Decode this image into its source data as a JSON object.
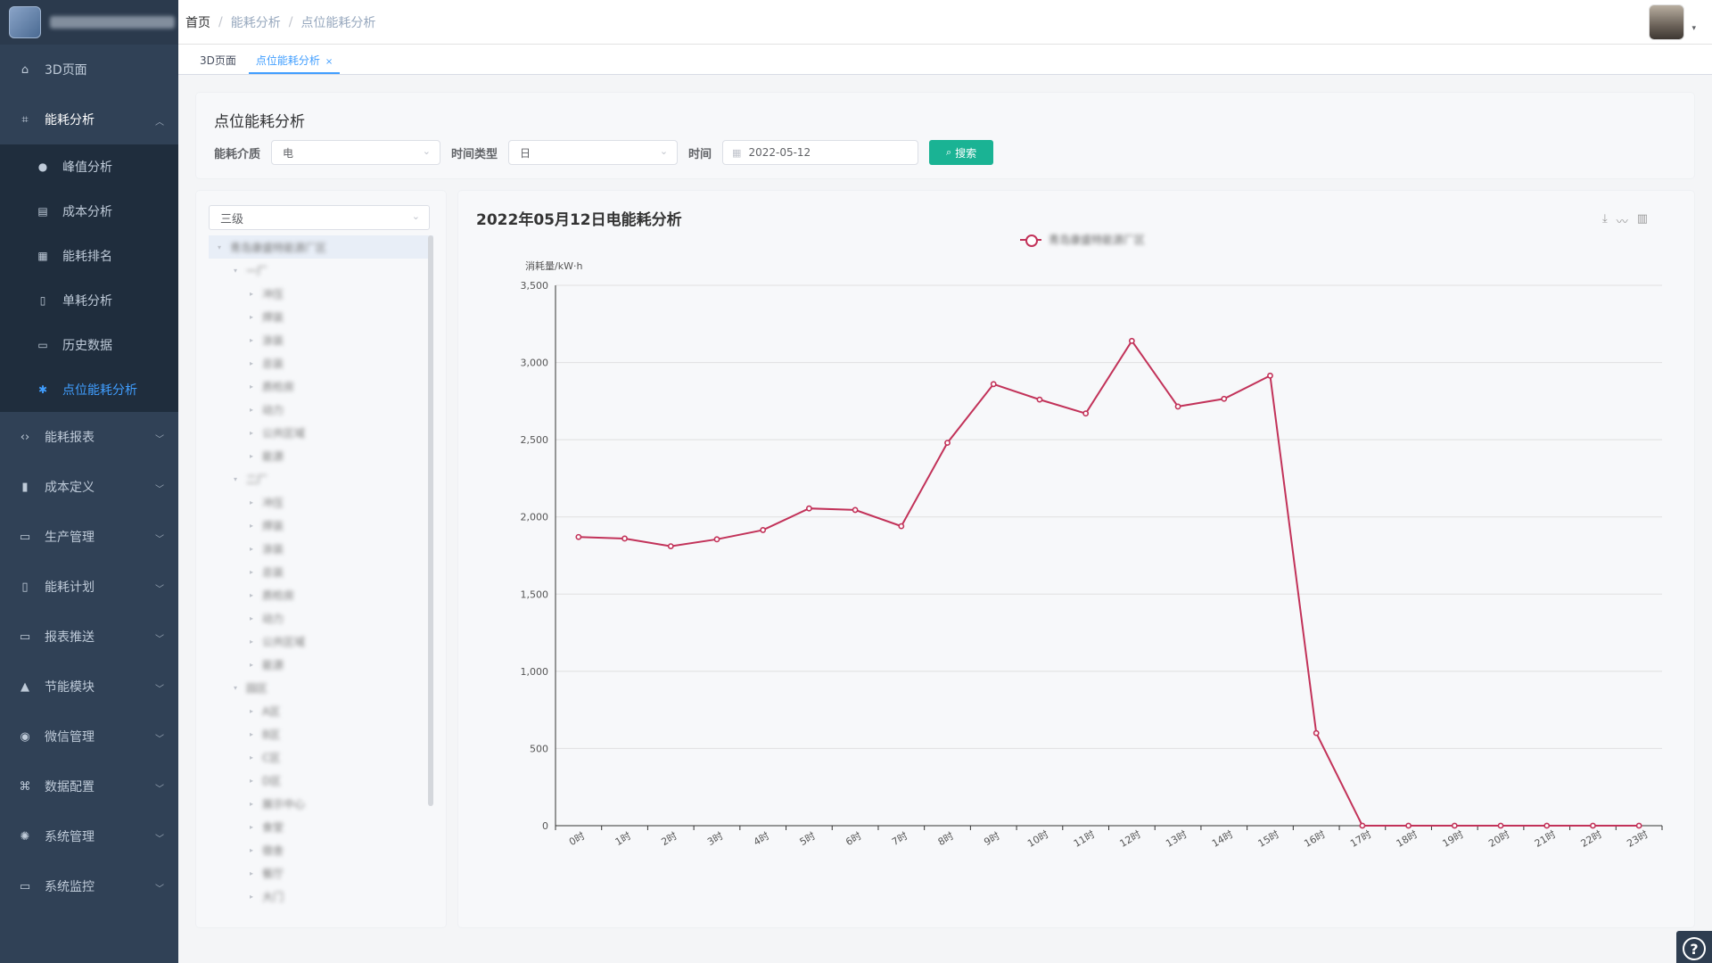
{
  "sidebar": {
    "items": [
      {
        "label": "3D页面",
        "icon": "dashboard-icon",
        "glyph": "⌂"
      },
      {
        "label": "能耗分析",
        "icon": "chart-icon",
        "glyph": "⌗",
        "open": true,
        "children": [
          {
            "label": "峰值分析",
            "icon": "info-icon",
            "glyph": "●"
          },
          {
            "label": "成本分析",
            "icon": "table-icon",
            "glyph": "▤"
          },
          {
            "label": "能耗排名",
            "icon": "grid-icon",
            "glyph": "▦"
          },
          {
            "label": "单耗分析",
            "icon": "document-icon",
            "glyph": "▯"
          },
          {
            "label": "历史数据",
            "icon": "clipboard-icon",
            "glyph": "▭"
          },
          {
            "label": "点位能耗分析",
            "icon": "bug-icon",
            "glyph": "✱",
            "active": true
          }
        ]
      },
      {
        "label": "能耗报表",
        "icon": "code-icon",
        "glyph": "‹›"
      },
      {
        "label": "成本定义",
        "icon": "document-icon",
        "glyph": "▮"
      },
      {
        "label": "生产管理",
        "icon": "monitor-icon",
        "glyph": "▭"
      },
      {
        "label": "能耗计划",
        "icon": "document-icon",
        "glyph": "▯"
      },
      {
        "label": "报表推送",
        "icon": "clipboard-icon",
        "glyph": "▭"
      },
      {
        "label": "节能模块",
        "icon": "lock-icon",
        "glyph": "▲"
      },
      {
        "label": "微信管理",
        "icon": "wechat-icon",
        "glyph": "◉"
      },
      {
        "label": "数据配置",
        "icon": "nodes-icon",
        "glyph": "⌘"
      },
      {
        "label": "系统管理",
        "icon": "gear-icon",
        "glyph": "✺"
      },
      {
        "label": "系统监控",
        "icon": "monitor-icon",
        "glyph": "▭"
      }
    ]
  },
  "header": {
    "breadcrumb": [
      "首页",
      "能耗分析",
      "点位能耗分析"
    ],
    "avatar_caret": "▾"
  },
  "tags": [
    {
      "label": "3D页面",
      "active": false
    },
    {
      "label": "点位能耗分析",
      "active": true,
      "close": "×"
    }
  ],
  "filters": {
    "title": "点位能耗分析",
    "medium_label": "能耗介质",
    "medium_value": "电",
    "time_type_label": "时间类型",
    "time_type_value": "日",
    "time_label": "时间",
    "time_value": "2022-05-12",
    "search_label": "搜索"
  },
  "tree": {
    "level_value": "三级",
    "nodes": [
      {
        "depth": 0,
        "arrow": "▾",
        "label": "青岛康盛特能源厂区",
        "selected": true
      },
      {
        "depth": 1,
        "arrow": "▾",
        "label": "一厂"
      },
      {
        "depth": 2,
        "arrow": "▸",
        "label": "冲压"
      },
      {
        "depth": 2,
        "arrow": "▸",
        "label": "焊装"
      },
      {
        "depth": 2,
        "arrow": "▸",
        "label": "涂装"
      },
      {
        "depth": 2,
        "arrow": "▸",
        "label": "总装",
        "selected": true
      },
      {
        "depth": 2,
        "arrow": "▸",
        "label": "质检房"
      },
      {
        "depth": 2,
        "arrow": "▸",
        "label": "动力"
      },
      {
        "depth": 2,
        "arrow": "▸",
        "label": "公共区域"
      },
      {
        "depth": 2,
        "arrow": "▸",
        "label": "能源"
      },
      {
        "depth": 1,
        "arrow": "▾",
        "label": "二厂"
      },
      {
        "depth": 2,
        "arrow": "▸",
        "label": "冲压"
      },
      {
        "depth": 2,
        "arrow": "▸",
        "label": "焊装"
      },
      {
        "depth": 2,
        "arrow": "▸",
        "label": "涂装"
      },
      {
        "depth": 2,
        "arrow": "▸",
        "label": "总装"
      },
      {
        "depth": 2,
        "arrow": "▸",
        "label": "质检房"
      },
      {
        "depth": 2,
        "arrow": "▸",
        "label": "动力"
      },
      {
        "depth": 2,
        "arrow": "▸",
        "label": "公共区域"
      },
      {
        "depth": 2,
        "arrow": "▸",
        "label": "能源"
      },
      {
        "depth": 1,
        "arrow": "▾",
        "label": "园区"
      },
      {
        "depth": 2,
        "arrow": "▸",
        "label": "A区"
      },
      {
        "depth": 2,
        "arrow": "▸",
        "label": "B区"
      },
      {
        "depth": 2,
        "arrow": "▸",
        "label": "C区"
      },
      {
        "depth": 2,
        "arrow": "▸",
        "label": "D区"
      },
      {
        "depth": 2,
        "arrow": "▸",
        "label": "展示中心"
      },
      {
        "depth": 2,
        "arrow": "▸",
        "label": "食堂"
      },
      {
        "depth": 2,
        "arrow": "▸",
        "label": "宿舍"
      },
      {
        "depth": 2,
        "arrow": "▸",
        "label": "餐厅"
      },
      {
        "depth": 2,
        "arrow": "▸",
        "label": "大门"
      }
    ]
  },
  "toolbox": {
    "download": "⤓",
    "line": "〰",
    "bar": "▥"
  },
  "help_glyph": "?",
  "chart_data": {
    "type": "line",
    "title": "2022年05月12日电能耗分析",
    "ylabel": "消耗量/kW·h",
    "xlabel": "",
    "ylim": [
      0,
      3500
    ],
    "yticks": [
      0,
      500,
      1000,
      1500,
      2000,
      2500,
      3000,
      3500
    ],
    "ytick_labels": [
      "0",
      "500",
      "1,000",
      "1,500",
      "2,000",
      "2,500",
      "3,000",
      "3,500"
    ],
    "categories": [
      "0时",
      "1时",
      "2时",
      "3时",
      "4时",
      "5时",
      "6时",
      "7时",
      "8时",
      "9时",
      "10时",
      "11时",
      "12时",
      "13时",
      "14时",
      "15时",
      "16时",
      "17时",
      "18时",
      "19时",
      "20时",
      "21时",
      "22时",
      "23时"
    ],
    "series": [
      {
        "name": "青岛康盛特能源厂区",
        "color": "#c23259",
        "values": [
          1870,
          1860,
          1810,
          1855,
          1915,
          2055,
          2045,
          1940,
          2480,
          2860,
          2760,
          2670,
          3140,
          2715,
          2765,
          2915,
          600,
          0,
          0,
          0,
          0,
          0,
          0,
          0
        ]
      }
    ],
    "grid": true,
    "legend": "top-center"
  }
}
